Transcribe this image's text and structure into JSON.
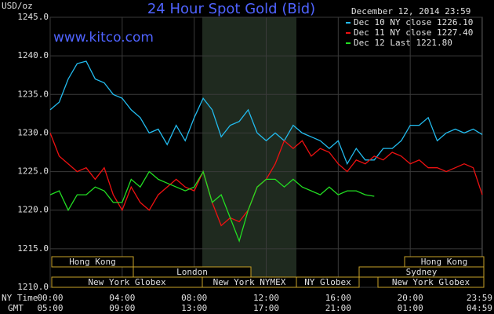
{
  "chart_data": {
    "type": "line",
    "title": "24 Hour Spot Gold (Bid)",
    "timestamp": "December 12, 2014 23:59",
    "source": "www.kitco.com",
    "y_label": "USD/oz",
    "x_label": "NY Time",
    "x2_label": "GMT",
    "x": [
      0,
      0.5,
      1,
      1.5,
      2,
      2.5,
      3,
      3.5,
      4,
      4.5,
      5,
      5.5,
      6,
      6.5,
      7,
      7.5,
      8,
      8.5,
      9,
      9.5,
      10,
      10.5,
      11,
      11.5,
      12,
      12.5,
      13,
      13.5,
      14,
      14.5,
      15,
      15.5,
      16,
      16.5,
      17,
      17.5,
      18,
      18.5,
      19,
      19.5,
      20,
      20.5,
      21,
      21.5,
      22,
      22.5,
      23,
      23.5,
      24
    ],
    "series": [
      {
        "name": "Dec 10 NY close 1226.10",
        "color": "#22bbee",
        "values": [
          1233,
          1234,
          1237,
          1239,
          1239.3,
          1237,
          1236.5,
          1235,
          1234.5,
          1233,
          1232,
          1230,
          1230.5,
          1228.5,
          1231,
          1229,
          1232,
          1234.5,
          1233,
          1229.5,
          1231,
          1231.5,
          1233,
          1230,
          1229,
          1230,
          1229,
          1231,
          1230,
          1229.5,
          1229,
          1228,
          1229,
          1226,
          1228,
          1226.5,
          1226.5,
          1228,
          1228,
          1229,
          1231,
          1231,
          1232,
          1229,
          1230,
          1230.5,
          1230,
          1230.5,
          1229.8
        ]
      },
      {
        "name": "Dec 11 NY close 1227.40",
        "color": "#ee1111",
        "values": [
          1230,
          1227,
          1226,
          1225,
          1225.5,
          1224,
          1225.5,
          1222,
          1220,
          1223,
          1221,
          1220,
          1222,
          1223,
          1224,
          1223,
          1222.5,
          1225,
          1221,
          1218,
          1219,
          1218.5,
          1220,
          1223,
          1224,
          1226,
          1229,
          1228,
          1229,
          1227,
          1228,
          1227.5,
          1226,
          1225,
          1226.5,
          1226,
          1227,
          1226.5,
          1227.5,
          1227,
          1226,
          1226.5,
          1225.5,
          1225.5,
          1225,
          1225.5,
          1226,
          1225.5,
          1222
        ]
      },
      {
        "name": "Dec 12 Last 1221.80",
        "color": "#22dd22",
        "values": [
          1222,
          1222.5,
          1220,
          1222,
          1222,
          1223,
          1222.5,
          1221,
          1221,
          1224,
          1223,
          1225,
          1224,
          1223.5,
          1223,
          1222.5,
          1223,
          1225,
          1221,
          1222,
          1219,
          1216,
          1220,
          1223,
          1224,
          1224,
          1223,
          1224,
          1223,
          1222.5,
          1222,
          1223,
          1222,
          1222.5,
          1222.5,
          1222,
          1221.8,
          null,
          null,
          null,
          null,
          null,
          null,
          null,
          null,
          null,
          null,
          null,
          null
        ]
      }
    ],
    "xlim": [
      0,
      24
    ],
    "xticks": [
      {
        "value": 0,
        "label": "00:00"
      },
      {
        "value": 4,
        "label": "04:00"
      },
      {
        "value": 8,
        "label": "08:00"
      },
      {
        "value": 12,
        "label": "12:00"
      },
      {
        "value": 16,
        "label": "16:00"
      },
      {
        "value": 20,
        "label": "20:00"
      },
      {
        "value": 23.98,
        "label": "23:59"
      }
    ],
    "x2ticks": [
      {
        "value": 0,
        "label": "05:00"
      },
      {
        "value": 4,
        "label": "09:00"
      },
      {
        "value": 8,
        "label": "13:00"
      },
      {
        "value": 12,
        "label": "17:00"
      },
      {
        "value": 16,
        "label": "21:00"
      },
      {
        "value": 20,
        "label": "01:00"
      },
      {
        "value": 23.98,
        "label": "04:59"
      }
    ],
    "ylim": [
      1210,
      1245
    ],
    "yticks": [
      {
        "value": 1210,
        "label": "1210.0"
      },
      {
        "value": 1215,
        "label": "1215.0"
      },
      {
        "value": 1220,
        "label": "1220.0"
      },
      {
        "value": 1225,
        "label": "1225.0"
      },
      {
        "value": 1230,
        "label": "1230.0"
      },
      {
        "value": 1235,
        "label": "1235.0"
      },
      {
        "value": 1240,
        "label": "1240.0"
      },
      {
        "value": 1245,
        "label": "1245.0"
      }
    ],
    "grid": true,
    "sessions": [
      "Hong Kong",
      "London",
      "New York Globex",
      "New York NYMEX",
      "NY Globex",
      "Sydney",
      "Hong Kong",
      "New York Globex"
    ]
  }
}
